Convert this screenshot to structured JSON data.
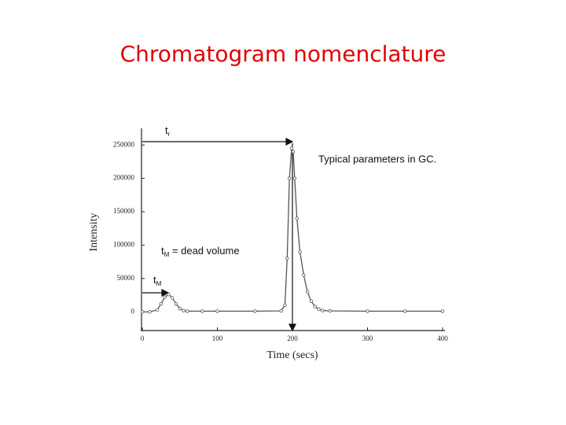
{
  "title": "Chromatogram nomenclature",
  "chart_data": {
    "type": "line",
    "xlabel": "Time (secs)",
    "ylabel": "Intensity",
    "x": [
      0,
      10,
      20,
      25,
      30,
      35,
      40,
      45,
      50,
      55,
      60,
      80,
      100,
      150,
      185,
      190,
      193,
      196,
      199,
      201,
      203,
      206,
      210,
      215,
      220,
      225,
      230,
      235,
      240,
      250,
      300,
      350,
      400
    ],
    "series": [
      {
        "color": "#555555",
        "values": [
          0,
          0,
          3000,
          12000,
          22000,
          26000,
          21000,
          12000,
          5000,
          2000,
          1000,
          1000,
          1000,
          1000,
          1500,
          10000,
          80000,
          200000,
          245000,
          240000,
          200000,
          140000,
          90000,
          55000,
          30000,
          16000,
          8000,
          4000,
          2000,
          1500,
          1000,
          1000,
          1000
        ]
      }
    ],
    "xlim": [
      0,
      400
    ],
    "ylim": [
      -28000,
      275000
    ],
    "xticks": [
      0,
      100,
      200,
      300,
      400
    ],
    "yticks": [
      0,
      50000,
      100000,
      150000,
      200000,
      250000
    ],
    "grid": false,
    "annotations": {
      "retention": {
        "text": "t",
        "sub": "r"
      },
      "note": "Typical parameters in GC.",
      "dead": {
        "text": "t",
        "sub": "M",
        "rest": " = dead volume"
      },
      "dead_arrow": {
        "text": "t",
        "sub": "M"
      }
    }
  }
}
